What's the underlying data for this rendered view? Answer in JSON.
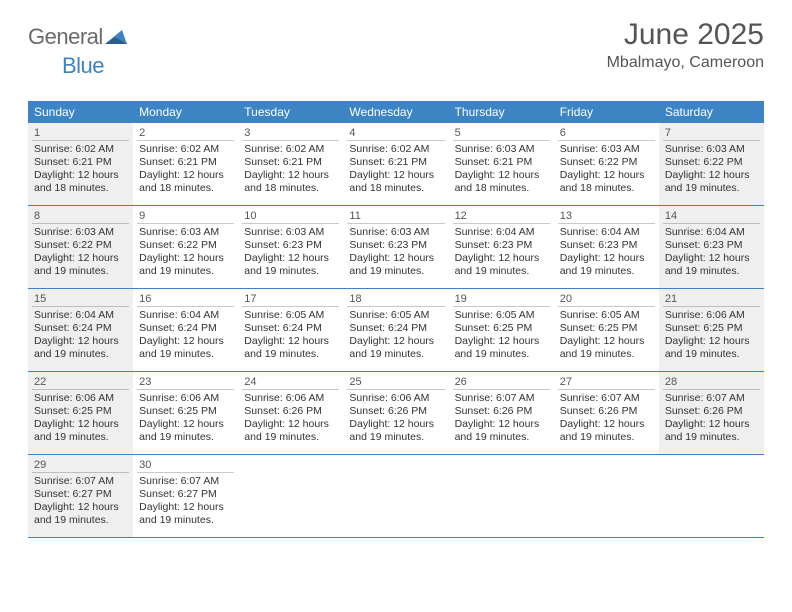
{
  "brand": {
    "word1": "General",
    "word2": "Blue"
  },
  "title": "June 2025",
  "location": "Mbalmayo, Cameroon",
  "colors": {
    "header_bg": "#3d84c4",
    "weekend_bg": "#efefef",
    "text": "#333333",
    "muted": "#555555",
    "rule": "#3d84c4"
  },
  "dayHeaders": [
    "Sunday",
    "Monday",
    "Tuesday",
    "Wednesday",
    "Thursday",
    "Friday",
    "Saturday"
  ],
  "weeks": [
    [
      {
        "n": "1",
        "weekend": true,
        "sunrise": "6:02 AM",
        "sunset": "6:21 PM",
        "daylight": "12 hours and 18 minutes."
      },
      {
        "n": "2",
        "sunrise": "6:02 AM",
        "sunset": "6:21 PM",
        "daylight": "12 hours and 18 minutes."
      },
      {
        "n": "3",
        "sunrise": "6:02 AM",
        "sunset": "6:21 PM",
        "daylight": "12 hours and 18 minutes."
      },
      {
        "n": "4",
        "sunrise": "6:02 AM",
        "sunset": "6:21 PM",
        "daylight": "12 hours and 18 minutes."
      },
      {
        "n": "5",
        "sunrise": "6:03 AM",
        "sunset": "6:21 PM",
        "daylight": "12 hours and 18 minutes."
      },
      {
        "n": "6",
        "sunrise": "6:03 AM",
        "sunset": "6:22 PM",
        "daylight": "12 hours and 18 minutes."
      },
      {
        "n": "7",
        "weekend": true,
        "sunrise": "6:03 AM",
        "sunset": "6:22 PM",
        "daylight": "12 hours and 19 minutes."
      }
    ],
    [
      {
        "n": "8",
        "weekend": true,
        "sunrise": "6:03 AM",
        "sunset": "6:22 PM",
        "daylight": "12 hours and 19 minutes."
      },
      {
        "n": "9",
        "sunrise": "6:03 AM",
        "sunset": "6:22 PM",
        "daylight": "12 hours and 19 minutes."
      },
      {
        "n": "10",
        "sunrise": "6:03 AM",
        "sunset": "6:23 PM",
        "daylight": "12 hours and 19 minutes."
      },
      {
        "n": "11",
        "sunrise": "6:03 AM",
        "sunset": "6:23 PM",
        "daylight": "12 hours and 19 minutes."
      },
      {
        "n": "12",
        "sunrise": "6:04 AM",
        "sunset": "6:23 PM",
        "daylight": "12 hours and 19 minutes."
      },
      {
        "n": "13",
        "sunrise": "6:04 AM",
        "sunset": "6:23 PM",
        "daylight": "12 hours and 19 minutes."
      },
      {
        "n": "14",
        "weekend": true,
        "sunrise": "6:04 AM",
        "sunset": "6:23 PM",
        "daylight": "12 hours and 19 minutes."
      }
    ],
    [
      {
        "n": "15",
        "weekend": true,
        "sunrise": "6:04 AM",
        "sunset": "6:24 PM",
        "daylight": "12 hours and 19 minutes."
      },
      {
        "n": "16",
        "sunrise": "6:04 AM",
        "sunset": "6:24 PM",
        "daylight": "12 hours and 19 minutes."
      },
      {
        "n": "17",
        "sunrise": "6:05 AM",
        "sunset": "6:24 PM",
        "daylight": "12 hours and 19 minutes."
      },
      {
        "n": "18",
        "sunrise": "6:05 AM",
        "sunset": "6:24 PM",
        "daylight": "12 hours and 19 minutes."
      },
      {
        "n": "19",
        "sunrise": "6:05 AM",
        "sunset": "6:25 PM",
        "daylight": "12 hours and 19 minutes."
      },
      {
        "n": "20",
        "sunrise": "6:05 AM",
        "sunset": "6:25 PM",
        "daylight": "12 hours and 19 minutes."
      },
      {
        "n": "21",
        "weekend": true,
        "sunrise": "6:06 AM",
        "sunset": "6:25 PM",
        "daylight": "12 hours and 19 minutes."
      }
    ],
    [
      {
        "n": "22",
        "weekend": true,
        "sunrise": "6:06 AM",
        "sunset": "6:25 PM",
        "daylight": "12 hours and 19 minutes."
      },
      {
        "n": "23",
        "sunrise": "6:06 AM",
        "sunset": "6:25 PM",
        "daylight": "12 hours and 19 minutes."
      },
      {
        "n": "24",
        "sunrise": "6:06 AM",
        "sunset": "6:26 PM",
        "daylight": "12 hours and 19 minutes."
      },
      {
        "n": "25",
        "sunrise": "6:06 AM",
        "sunset": "6:26 PM",
        "daylight": "12 hours and 19 minutes."
      },
      {
        "n": "26",
        "sunrise": "6:07 AM",
        "sunset": "6:26 PM",
        "daylight": "12 hours and 19 minutes."
      },
      {
        "n": "27",
        "sunrise": "6:07 AM",
        "sunset": "6:26 PM",
        "daylight": "12 hours and 19 minutes."
      },
      {
        "n": "28",
        "weekend": true,
        "sunrise": "6:07 AM",
        "sunset": "6:26 PM",
        "daylight": "12 hours and 19 minutes."
      }
    ],
    [
      {
        "n": "29",
        "weekend": true,
        "sunrise": "6:07 AM",
        "sunset": "6:27 PM",
        "daylight": "12 hours and 19 minutes."
      },
      {
        "n": "30",
        "sunrise": "6:07 AM",
        "sunset": "6:27 PM",
        "daylight": "12 hours and 19 minutes."
      },
      {
        "empty": true
      },
      {
        "empty": true
      },
      {
        "empty": true
      },
      {
        "empty": true
      },
      {
        "empty": true
      }
    ]
  ],
  "labels": {
    "sunrise": "Sunrise:",
    "sunset": "Sunset:",
    "daylight": "Daylight:"
  }
}
